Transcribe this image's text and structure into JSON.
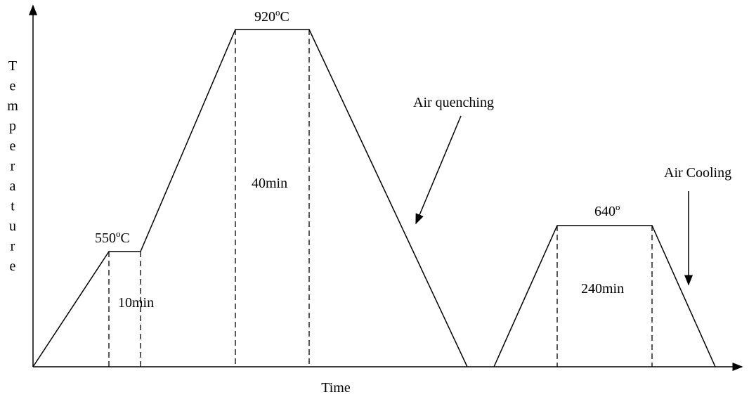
{
  "axes": {
    "y_label": "Temperature",
    "x_label": "Time"
  },
  "temperatures": [
    {
      "number": "550",
      "degree": "o",
      "unit": "C"
    },
    {
      "number": "920",
      "degree": "o",
      "unit": "C"
    },
    {
      "number": "640",
      "degree": "o"
    }
  ],
  "holds": [
    "10min",
    "40min",
    "240min"
  ],
  "annotations": [
    "Air quenching",
    "Air Cooling"
  ]
}
